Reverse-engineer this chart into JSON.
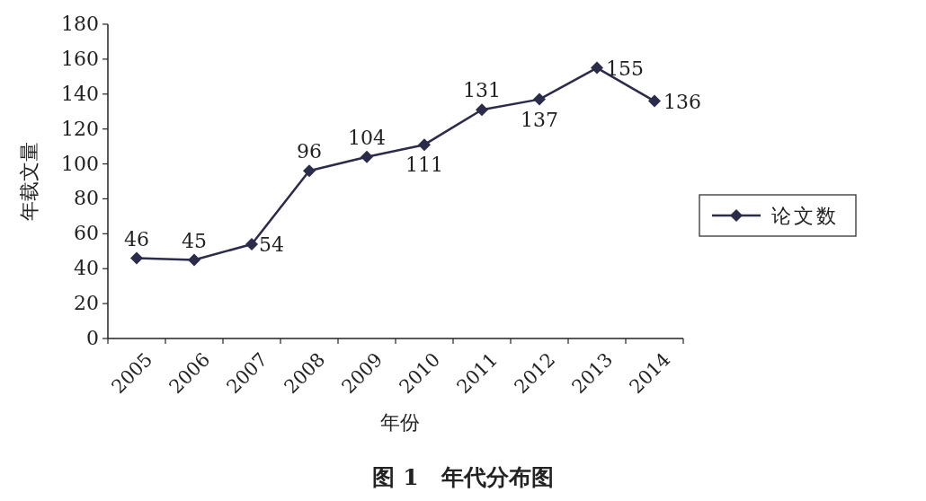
{
  "chart_data": {
    "type": "line",
    "title": "图 1　年代分布图",
    "xlabel": "年份",
    "ylabel": "年载文量",
    "categories": [
      "2005",
      "2006",
      "2007",
      "2008",
      "2009",
      "2010",
      "2011",
      "2012",
      "2013",
      "2014"
    ],
    "series": [
      {
        "name": "论文数",
        "color": "#2b2b4a",
        "values": [
          46,
          45,
          54,
          96,
          104,
          111,
          131,
          137,
          155,
          136
        ]
      }
    ],
    "ylim": [
      0,
      180
    ],
    "yticks": [
      0,
      20,
      40,
      60,
      80,
      100,
      120,
      140,
      160,
      180
    ],
    "data_labels": true,
    "legend": "right",
    "marker": "diamond",
    "line_style": "solid",
    "grid": false
  }
}
